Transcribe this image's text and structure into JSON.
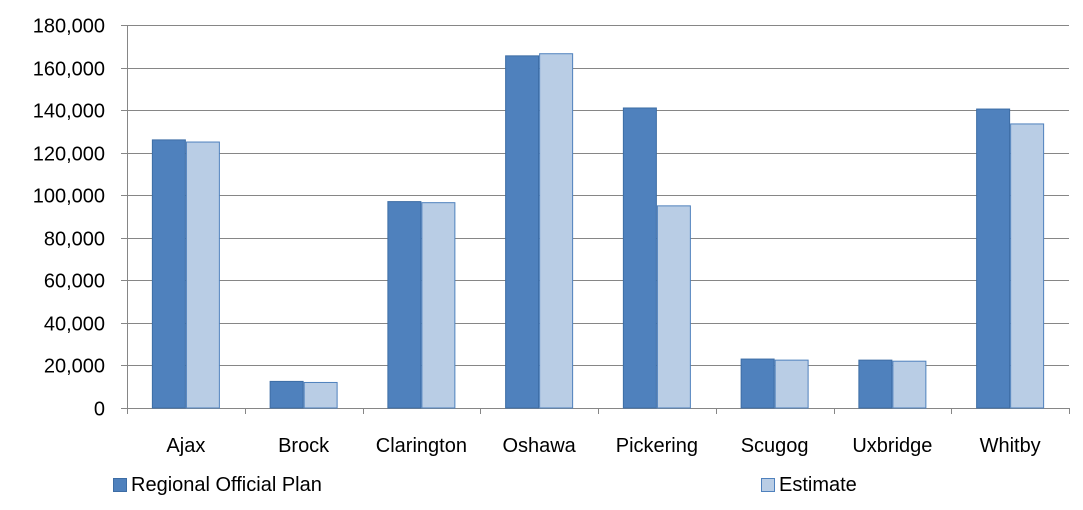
{
  "chart_data": {
    "type": "bar",
    "title": "",
    "xlabel": "",
    "ylabel": "",
    "categories": [
      "Ajax",
      "Brock",
      "Clarington",
      "Oshawa",
      "Pickering",
      "Scugog",
      "Uxbridge",
      "Whitby"
    ],
    "series": [
      {
        "name": "Regional Official Plan",
        "color": "#4f81bd",
        "values": [
          126000,
          12500,
          97000,
          165500,
          141000,
          23000,
          22500,
          140500
        ]
      },
      {
        "name": "Estimate",
        "color": "#b9cde5",
        "values": [
          125000,
          12000,
          96500,
          166500,
          95000,
          22500,
          22000,
          133500
        ]
      }
    ],
    "ylim": [
      0,
      180000
    ],
    "yticks": [
      0,
      20000,
      40000,
      60000,
      80000,
      100000,
      120000,
      140000,
      160000,
      180000
    ],
    "ytick_labels": [
      "0",
      "20,000",
      "40,000",
      "60,000",
      "80,000",
      "100,000",
      "120,000",
      "140,000",
      "160,000",
      "180,000"
    ],
    "grid": true,
    "legend_position": "bottom"
  }
}
